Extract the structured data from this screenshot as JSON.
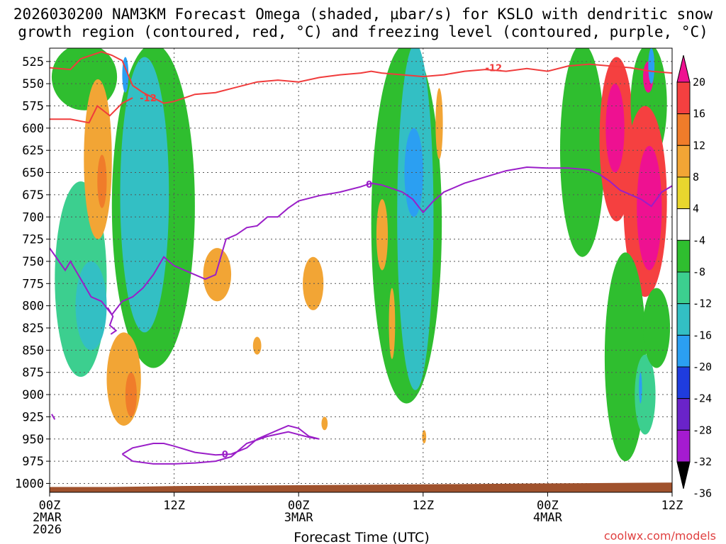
{
  "chart_data": {
    "type": "heatmap",
    "title_line1": "2026030200 NAM3KM Forecast Omega (shaded, µbar/s) for KSLO with dendritic snow",
    "title_line2": "growth region (contoured, red, °C) and freezing level (contoured, purple, °C)",
    "xlabel": "Forecast Time (UTC)",
    "x_range_hours": [
      0,
      60
    ],
    "x_ticks": [
      {
        "hour": 0,
        "lines": [
          "00Z",
          "2MAR",
          "2026"
        ]
      },
      {
        "hour": 12,
        "lines": [
          "12Z"
        ]
      },
      {
        "hour": 24,
        "lines": [
          "00Z",
          "3MAR"
        ]
      },
      {
        "hour": 36,
        "lines": [
          "12Z"
        ]
      },
      {
        "hour": 48,
        "lines": [
          "00Z",
          "4MAR"
        ]
      },
      {
        "hour": 60,
        "lines": [
          "12Z"
        ]
      }
    ],
    "y_range_hpa": [
      510,
      1010
    ],
    "y_ticks": [
      525,
      550,
      575,
      600,
      625,
      650,
      675,
      700,
      725,
      750,
      775,
      800,
      825,
      850,
      875,
      900,
      925,
      950,
      975,
      1000
    ],
    "grid": true,
    "colorbar": {
      "labels": [
        "20",
        "16",
        "12",
        "8",
        "4",
        "-4",
        "-8",
        "-12",
        "-16",
        "-20",
        "-24",
        "-28",
        "-32",
        "-36"
      ],
      "colors": [
        "#ee1191",
        "#f54040",
        "#f07c2a",
        "#f2a535",
        "#e8d62e",
        "#ffffff",
        "#2fbe2f",
        "#3ccf8f",
        "#33bfc4",
        "#2b9ff2",
        "#1f3cde",
        "#6a23c9",
        "#a51bd0",
        "#a9a9a9"
      ]
    },
    "omega_regions": [
      {
        "value": -8,
        "hour_range": [
          0.2,
          6.5
        ],
        "p_range": [
          505,
          580
        ]
      },
      {
        "value": -12,
        "hour_range": [
          0.5,
          5.5
        ],
        "p_range": [
          660,
          880
        ]
      },
      {
        "value": -16,
        "hour_range": [
          2.5,
          5.5
        ],
        "p_range": [
          750,
          850
        ]
      },
      {
        "value": 6,
        "hour_range": [
          3.3,
          6.0
        ],
        "p_range": [
          545,
          725
        ]
      },
      {
        "value": 12,
        "hour_range": [
          4.6,
          5.5
        ],
        "p_range": [
          630,
          690
        ]
      },
      {
        "value": -8,
        "hour_range": [
          6.0,
          14.0
        ],
        "p_range": [
          505,
          870
        ]
      },
      {
        "value": -14,
        "hour_range": [
          6.8,
          11.5
        ],
        "p_range": [
          520,
          830
        ]
      },
      {
        "value": -20,
        "hour_range": [
          7.0,
          7.6
        ],
        "p_range": [
          520,
          560
        ]
      },
      {
        "value": 6,
        "hour_range": [
          5.5,
          8.8
        ],
        "p_range": [
          830,
          935
        ]
      },
      {
        "value": 12,
        "hour_range": [
          7.3,
          8.4
        ],
        "p_range": [
          875,
          925
        ]
      },
      {
        "value": 6,
        "hour_range": [
          14.8,
          17.5
        ],
        "p_range": [
          735,
          795
        ]
      },
      {
        "value": 6,
        "hour_range": [
          19.6,
          20.4
        ],
        "p_range": [
          835,
          855
        ]
      },
      {
        "value": 6,
        "hour_range": [
          24.4,
          26.4
        ],
        "p_range": [
          745,
          805
        ]
      },
      {
        "value": 6,
        "hour_range": [
          26.2,
          26.8
        ],
        "p_range": [
          925,
          940
        ]
      },
      {
        "value": -8,
        "hour_range": [
          31.0,
          37.8
        ],
        "p_range": [
          505,
          910
        ]
      },
      {
        "value": -14,
        "hour_range": [
          33.5,
          37.0
        ],
        "p_range": [
          505,
          895
        ]
      },
      {
        "value": -18,
        "hour_range": [
          34.2,
          36.0
        ],
        "p_range": [
          600,
          700
        ]
      },
      {
        "value": 6,
        "hour_range": [
          31.5,
          32.6
        ],
        "p_range": [
          680,
          760
        ]
      },
      {
        "value": 6,
        "hour_range": [
          32.7,
          33.3
        ],
        "p_range": [
          780,
          860
        ]
      },
      {
        "value": 6,
        "hour_range": [
          37.2,
          37.9
        ],
        "p_range": [
          555,
          635
        ]
      },
      {
        "value": 6,
        "hour_range": [
          35.9,
          36.3
        ],
        "p_range": [
          940,
          955
        ]
      },
      {
        "value": -8,
        "hour_range": [
          49.2,
          53.5
        ],
        "p_range": [
          505,
          745
        ]
      },
      {
        "value": 14,
        "hour_range": [
          53.0,
          56.3
        ],
        "p_range": [
          520,
          705
        ]
      },
      {
        "value": 20,
        "hour_range": [
          53.6,
          55.4
        ],
        "p_range": [
          550,
          650
        ]
      },
      {
        "value": -8,
        "hour_range": [
          56.0,
          59.5
        ],
        "p_range": [
          505,
          640
        ]
      },
      {
        "value": 20,
        "hour_range": [
          57.2,
          58.2
        ],
        "p_range": [
          525,
          560
        ]
      },
      {
        "value": -20,
        "hour_range": [
          57.7,
          58.3
        ],
        "p_range": [
          510,
          550
        ]
      },
      {
        "value": 14,
        "hour_range": [
          55.3,
          59.5
        ],
        "p_range": [
          575,
          790
        ]
      },
      {
        "value": 20,
        "hour_range": [
          56.6,
          59.0
        ],
        "p_range": [
          620,
          760
        ]
      },
      {
        "value": -8,
        "hour_range": [
          53.5,
          57.5
        ],
        "p_range": [
          740,
          975
        ]
      },
      {
        "value": -12,
        "hour_range": [
          56.4,
          58.4
        ],
        "p_range": [
          855,
          945
        ]
      },
      {
        "value": -20,
        "hour_range": [
          56.8,
          57.1
        ],
        "p_range": [
          875,
          910
        ]
      },
      {
        "value": -8,
        "hour_range": [
          57.2,
          59.8
        ],
        "p_range": [
          780,
          870
        ]
      }
    ],
    "dgz_contours": [
      {
        "label": "-12",
        "label_at": {
          "hour": 9.5,
          "hpa": 566
        },
        "points": [
          [
            0,
            532
          ],
          [
            2,
            534
          ],
          [
            3,
            522
          ],
          [
            5,
            514
          ],
          [
            6,
            518
          ],
          [
            7,
            524
          ],
          [
            8,
            552
          ],
          [
            9,
            560
          ],
          [
            10,
            566
          ],
          [
            11,
            572
          ],
          [
            12,
            570
          ],
          [
            14,
            562
          ],
          [
            16,
            560
          ],
          [
            18,
            554
          ],
          [
            20,
            548
          ],
          [
            22,
            546
          ],
          [
            24,
            548
          ],
          [
            26,
            543
          ],
          [
            28,
            540
          ],
          [
            30,
            538
          ],
          [
            31,
            536
          ],
          [
            32,
            538
          ],
          [
            34,
            540
          ],
          [
            36,
            542
          ],
          [
            38,
            540
          ],
          [
            40,
            536
          ],
          [
            42,
            534
          ],
          [
            44,
            536
          ],
          [
            46,
            533
          ],
          [
            48,
            536
          ],
          [
            50,
            530
          ],
          [
            52,
            528
          ],
          [
            54,
            530
          ],
          [
            56,
            532
          ],
          [
            58,
            536
          ],
          [
            60,
            538
          ]
        ]
      },
      {
        "label": "-12",
        "label_at": {
          "hour": 42.8,
          "hpa": 532
        },
        "points": [
          [
            0,
            590
          ],
          [
            2,
            590
          ],
          [
            3.8,
            594
          ],
          [
            4.6,
            575
          ],
          [
            5.8,
            586
          ],
          [
            7,
            572
          ],
          [
            8,
            566
          ]
        ]
      }
    ],
    "freezing_contours": [
      {
        "label": "0",
        "label_at": {
          "hour": 30.8,
          "hpa": 663
        },
        "points": [
          [
            0,
            735
          ],
          [
            1.5,
            760
          ],
          [
            2,
            750
          ],
          [
            3,
            770
          ],
          [
            4,
            790
          ],
          [
            5,
            795
          ],
          [
            6,
            810
          ],
          [
            7,
            795
          ],
          [
            8,
            790
          ],
          [
            9,
            780
          ],
          [
            10,
            765
          ],
          [
            11,
            745
          ],
          [
            12,
            755
          ],
          [
            13,
            760
          ],
          [
            14,
            765
          ],
          [
            15,
            770
          ],
          [
            16,
            765
          ],
          [
            17,
            725
          ],
          [
            18,
            720
          ],
          [
            19,
            712
          ],
          [
            20,
            710
          ],
          [
            21,
            700
          ],
          [
            22,
            700
          ],
          [
            23,
            690
          ],
          [
            24,
            682
          ],
          [
            26,
            676
          ],
          [
            28,
            672
          ],
          [
            30,
            666
          ],
          [
            31,
            662
          ],
          [
            32,
            664
          ],
          [
            33,
            668
          ],
          [
            34,
            672
          ],
          [
            35,
            680
          ],
          [
            36,
            695
          ],
          [
            37,
            682
          ],
          [
            38,
            672
          ],
          [
            40,
            662
          ],
          [
            42,
            655
          ],
          [
            44,
            648
          ],
          [
            46,
            644
          ],
          [
            48,
            645
          ],
          [
            50,
            645
          ],
          [
            52,
            647
          ],
          [
            53,
            652
          ],
          [
            54,
            660
          ],
          [
            55,
            670
          ],
          [
            56,
            675
          ],
          [
            57,
            680
          ],
          [
            58,
            688
          ],
          [
            59,
            672
          ],
          [
            60,
            665
          ]
        ]
      },
      {
        "label": "0",
        "label_at": {
          "hour": 16.9,
          "hpa": 967
        },
        "points": [
          [
            7,
            967
          ],
          [
            8,
            960
          ],
          [
            10,
            955
          ],
          [
            11,
            955
          ],
          [
            12,
            958
          ],
          [
            14,
            965
          ],
          [
            16,
            968
          ],
          [
            17.5,
            967
          ],
          [
            19,
            960
          ],
          [
            20,
            950
          ],
          [
            22,
            940
          ],
          [
            23,
            935
          ],
          [
            24,
            938
          ],
          [
            25,
            947
          ],
          [
            26,
            950
          ],
          [
            25,
            948
          ],
          [
            23,
            942
          ],
          [
            21,
            947
          ],
          [
            19,
            955
          ],
          [
            17.5,
            970
          ],
          [
            16,
            975
          ],
          [
            14,
            977
          ],
          [
            12,
            978
          ],
          [
            10,
            978
          ],
          [
            8,
            975
          ],
          [
            7,
            967
          ]
        ]
      },
      {
        "label": "",
        "label_at": {
          "hour": 0,
          "hpa": 0
        },
        "points": [
          [
            5.6,
            802
          ],
          [
            6.1,
            812
          ],
          [
            5.8,
            822
          ],
          [
            6.4,
            828
          ],
          [
            5.9,
            832
          ]
        ]
      },
      {
        "label": "",
        "label_at": {
          "hour": 0,
          "hpa": 0
        },
        "points": [
          [
            0.2,
            922
          ],
          [
            0.5,
            928
          ]
        ]
      }
    ],
    "terrain_hpa": [
      [
        0,
        1004
      ],
      [
        6,
        1004
      ],
      [
        12,
        1003
      ],
      [
        24,
        1002
      ],
      [
        36,
        1001
      ],
      [
        48,
        1000
      ],
      [
        60,
        999
      ]
    ],
    "credit": "coolwx.com/models"
  }
}
